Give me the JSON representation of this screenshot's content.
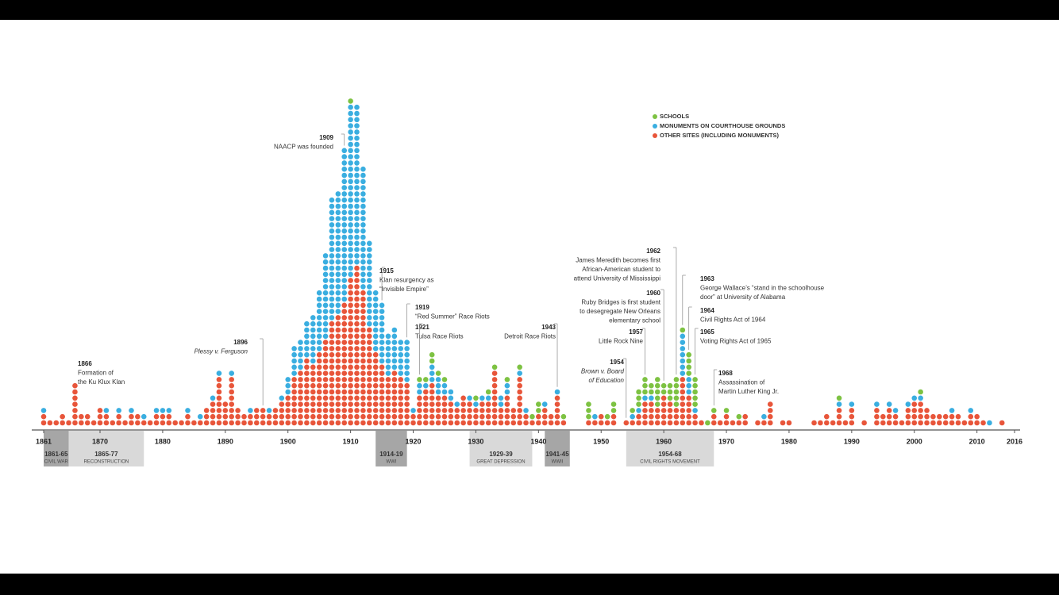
{
  "chart_data": {
    "type": "dotstack",
    "x": [
      1861,
      1862,
      1863,
      1864,
      1865,
      1866,
      1867,
      1868,
      1869,
      1870,
      1871,
      1872,
      1873,
      1874,
      1875,
      1876,
      1877,
      1878,
      1879,
      1880,
      1881,
      1882,
      1883,
      1884,
      1885,
      1886,
      1887,
      1888,
      1889,
      1890,
      1891,
      1892,
      1893,
      1894,
      1895,
      1896,
      1897,
      1898,
      1899,
      1900,
      1901,
      1902,
      1903,
      1904,
      1905,
      1906,
      1907,
      1908,
      1909,
      1910,
      1911,
      1912,
      1913,
      1914,
      1915,
      1916,
      1917,
      1918,
      1919,
      1920,
      1921,
      1922,
      1923,
      1924,
      1925,
      1926,
      1927,
      1928,
      1929,
      1930,
      1931,
      1932,
      1933,
      1934,
      1935,
      1936,
      1937,
      1938,
      1939,
      1940,
      1941,
      1942,
      1943,
      1944,
      1945,
      1946,
      1947,
      1948,
      1949,
      1950,
      1951,
      1952,
      1953,
      1954,
      1955,
      1956,
      1957,
      1958,
      1959,
      1960,
      1961,
      1962,
      1963,
      1964,
      1965,
      1966,
      1967,
      1968,
      1969,
      1970,
      1971,
      1972,
      1973,
      1974,
      1975,
      1976,
      1977,
      1978,
      1979,
      1980,
      1981,
      1982,
      1983,
      1984,
      1985,
      1986,
      1987,
      1988,
      1989,
      1990,
      1991,
      1992,
      1993,
      1994,
      1995,
      1996,
      1997,
      1998,
      1999,
      2000,
      2001,
      2002,
      2003,
      2004,
      2005,
      2006,
      2007,
      2008,
      2009,
      2010,
      2011,
      2012,
      2013,
      2014,
      2015,
      2016
    ],
    "series": [
      {
        "name": "OTHER SITES (INCLUDING MONUMENTS)",
        "color": "#e8553a",
        "values": [
          2,
          1,
          1,
          2,
          1,
          7,
          2,
          2,
          1,
          3,
          2,
          1,
          2,
          1,
          2,
          2,
          1,
          1,
          2,
          2,
          2,
          1,
          1,
          2,
          1,
          1,
          3,
          4,
          8,
          4,
          8,
          3,
          2,
          2,
          3,
          3,
          2,
          3,
          4,
          5,
          8,
          9,
          11,
          10,
          12,
          14,
          17,
          18,
          20,
          24,
          26,
          22,
          16,
          12,
          10,
          8,
          9,
          8,
          7,
          2,
          5,
          6,
          7,
          5,
          5,
          4,
          3,
          5,
          4,
          3,
          4,
          4,
          9,
          3,
          5,
          3,
          8,
          2,
          1,
          2,
          3,
          2,
          5,
          1,
          0,
          0,
          0,
          1,
          1,
          2,
          1,
          2,
          0,
          1,
          1,
          2,
          4,
          4,
          3,
          5,
          4,
          3,
          8,
          5,
          2,
          1,
          0,
          2,
          1,
          2,
          1,
          1,
          2,
          0,
          1,
          1,
          4,
          0,
          1,
          1,
          0,
          0,
          0,
          1,
          1,
          2,
          1,
          3,
          1,
          3,
          0,
          1,
          0,
          3,
          2,
          3,
          2,
          1,
          3,
          4,
          4,
          3,
          2,
          2,
          2,
          2,
          2,
          1,
          2,
          2,
          1,
          0,
          0,
          1,
          0,
          0
        ]
      },
      {
        "name": "MONUMENTS ON COURTHOUSE GROUNDS",
        "color": "#3aaee0",
        "values": [
          1,
          0,
          0,
          0,
          0,
          0,
          0,
          0,
          0,
          0,
          1,
          0,
          1,
          0,
          1,
          0,
          1,
          0,
          1,
          1,
          1,
          0,
          0,
          1,
          0,
          1,
          0,
          1,
          1,
          0,
          1,
          0,
          0,
          1,
          0,
          0,
          1,
          0,
          1,
          3,
          5,
          5,
          6,
          8,
          10,
          14,
          20,
          20,
          25,
          28,
          26,
          20,
          14,
          10,
          10,
          7,
          7,
          6,
          7,
          1,
          2,
          1,
          3,
          3,
          2,
          2,
          1,
          0,
          1,
          1,
          1,
          1,
          0,
          2,
          2,
          0,
          1,
          1,
          0,
          0,
          1,
          0,
          1,
          0,
          0,
          0,
          0,
          0,
          1,
          0,
          0,
          0,
          0,
          0,
          1,
          1,
          1,
          1,
          0,
          0,
          0,
          0,
          7,
          3,
          1,
          0,
          0,
          0,
          0,
          0,
          0,
          0,
          0,
          0,
          0,
          1,
          0,
          0,
          0,
          0,
          0,
          0,
          0,
          0,
          0,
          0,
          0,
          1,
          0,
          1,
          0,
          0,
          0,
          1,
          0,
          1,
          1,
          0,
          1,
          1,
          1,
          0,
          0,
          0,
          0,
          1,
          0,
          0,
          1,
          0,
          0,
          1,
          0,
          0,
          0,
          0
        ]
      },
      {
        "name": "SCHOOLS",
        "color": "#7dc242",
        "values": [
          0,
          0,
          0,
          0,
          0,
          0,
          0,
          0,
          0,
          0,
          0,
          0,
          0,
          0,
          0,
          0,
          0,
          0,
          0,
          0,
          0,
          0,
          0,
          0,
          0,
          0,
          0,
          0,
          0,
          0,
          0,
          0,
          0,
          0,
          0,
          0,
          0,
          0,
          0,
          0,
          0,
          0,
          0,
          0,
          0,
          0,
          0,
          0,
          0,
          1,
          0,
          0,
          0,
          0,
          0,
          0,
          0,
          0,
          0,
          0,
          1,
          1,
          2,
          1,
          1,
          0,
          0,
          0,
          0,
          1,
          0,
          1,
          1,
          0,
          1,
          0,
          1,
          0,
          1,
          2,
          0,
          0,
          0,
          1,
          0,
          0,
          0,
          3,
          0,
          0,
          1,
          2,
          0,
          0,
          1,
          3,
          3,
          2,
          5,
          2,
          3,
          5,
          1,
          4,
          5,
          0,
          1,
          1,
          0,
          1,
          0,
          1,
          0,
          0,
          0,
          0,
          0,
          0,
          0,
          0,
          0,
          0,
          0,
          0,
          0,
          0,
          0,
          1,
          0,
          0,
          0,
          0,
          0,
          0,
          0,
          0,
          0,
          0,
          0,
          0,
          1,
          0,
          0,
          0,
          0,
          0,
          0,
          0,
          0,
          0,
          0,
          0,
          0,
          0,
          0,
          0
        ]
      }
    ],
    "legend_order": [
      2,
      1,
      0
    ],
    "xlim": [
      1861,
      2016
    ],
    "xticks": [
      1861,
      1870,
      1880,
      1890,
      1900,
      1910,
      1920,
      1930,
      1940,
      1950,
      1960,
      1970,
      1980,
      1990,
      2000,
      2010,
      2016
    ],
    "periods": [
      {
        "label": "1861-65",
        "sublabel": "CIVIL WAR",
        "start": 1861,
        "end": 1865,
        "color": "#a6a6a6"
      },
      {
        "label": "1865-77",
        "sublabel": "RECONSTRUCTION",
        "start": 1865,
        "end": 1877,
        "color": "#d9d9d9"
      },
      {
        "label": "1914-19",
        "sublabel": "WWI",
        "start": 1914,
        "end": 1919,
        "color": "#a6a6a6"
      },
      {
        "label": "1929-39",
        "sublabel": "GREAT DEPRESSION",
        "start": 1929,
        "end": 1939,
        "color": "#d9d9d9"
      },
      {
        "label": "1941-45",
        "sublabel": "WWII",
        "start": 1941,
        "end": 1945,
        "color": "#a6a6a6"
      },
      {
        "label": "1954-68",
        "sublabel": "CIVIL RIGHTS MOVEMENT",
        "start": 1954,
        "end": 1968,
        "color": "#d9d9d9"
      }
    ],
    "annotations": [
      {
        "year": 1866,
        "text": [
          "Formation of",
          "the Ku Klux Klan"
        ]
      },
      {
        "year": 1896,
        "text": [
          "Plessy v. Ferguson"
        ]
      },
      {
        "year": 1909,
        "text": [
          "NAACP was founded"
        ]
      },
      {
        "year": 1915,
        "text": [
          "Klan resurgency as",
          "“Invisible Empire”"
        ]
      },
      {
        "year": 1919,
        "text": [
          "“Red Summer” Race Riots"
        ]
      },
      {
        "year": 1921,
        "text": [
          "Tulsa Race Riots"
        ]
      },
      {
        "year": 1943,
        "text": [
          "Detroit Race Riots"
        ]
      },
      {
        "year": 1954,
        "text": [
          "Brown v. Board",
          "of Education"
        ]
      },
      {
        "year": 1957,
        "text": [
          "Little Rock Nine"
        ]
      },
      {
        "year": 1960,
        "text": [
          "Ruby Bridges is first student",
          "to desegregate New Orleans",
          "elementary school"
        ]
      },
      {
        "year": 1962,
        "text": [
          "James Meredith becomes first",
          "African-American student to",
          "attend University of Mississippi"
        ]
      },
      {
        "year": 1963,
        "text": [
          "George Wallace’s “stand in the schoolhouse",
          "door” at University of Alabama"
        ]
      },
      {
        "year": 1964,
        "text": [
          "Civil Rights Act of 1964"
        ]
      },
      {
        "year": 1965,
        "text": [
          "Voting Rights Act of 1965"
        ]
      },
      {
        "year": 1968,
        "text": [
          "Assassination of",
          "Martin Luther King Jr."
        ]
      }
    ]
  }
}
